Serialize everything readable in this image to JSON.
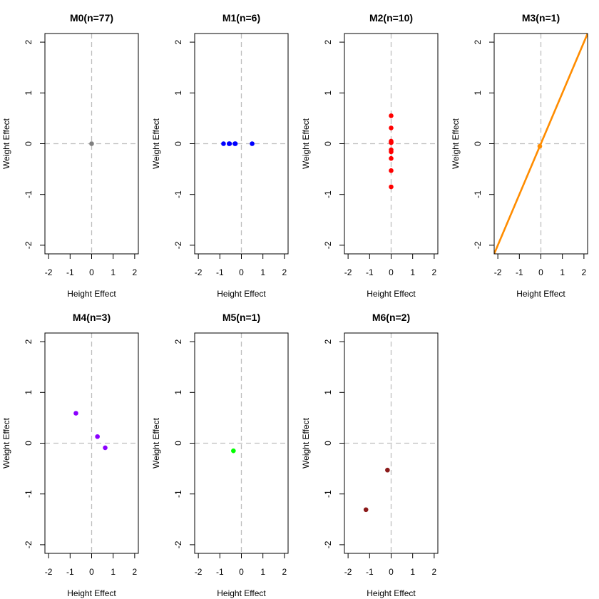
{
  "figure": {
    "xlabel": "Height Effect",
    "ylabel": "Weight Effect",
    "xticks": [
      "-2",
      "-1",
      "0",
      "1",
      "2"
    ],
    "yticks": [
      "-2",
      "-1",
      "0",
      "1",
      "2"
    ]
  },
  "chart_data": [
    {
      "type": "scatter",
      "title": "M0(n=77)",
      "color": "#808080",
      "xlabel": "Height Effect",
      "ylabel": "Weight Effect",
      "xlim": [
        -2.17,
        2.17
      ],
      "ylim": [
        -2.17,
        2.17
      ],
      "points": [
        [
          0,
          0
        ]
      ]
    },
    {
      "type": "scatter",
      "title": "M1(n=6)",
      "color": "#0000ff",
      "xlabel": "Height Effect",
      "ylabel": "Weight Effect",
      "xlim": [
        -2.17,
        2.17
      ],
      "ylim": [
        -2.17,
        2.17
      ],
      "points": [
        [
          -0.83,
          0
        ],
        [
          -0.57,
          0
        ],
        [
          -0.3,
          0
        ],
        [
          -0.28,
          0
        ],
        [
          0.5,
          0
        ],
        [
          -0.55,
          0
        ]
      ]
    },
    {
      "type": "scatter",
      "title": "M2(n=10)",
      "color": "#ff0000",
      "xlabel": "Height Effect",
      "ylabel": "Weight Effect",
      "xlim": [
        -2.17,
        2.17
      ],
      "ylim": [
        -2.17,
        2.17
      ],
      "points": [
        [
          0,
          0.55
        ],
        [
          0,
          0.31
        ],
        [
          0,
          0.05
        ],
        [
          0,
          0.02
        ],
        [
          0,
          -0.12
        ],
        [
          0,
          -0.16
        ],
        [
          0,
          -0.29
        ],
        [
          0,
          -0.53
        ],
        [
          0,
          -0.85
        ],
        [
          0,
          0.03
        ]
      ]
    },
    {
      "type": "line",
      "title": "M3(n=1)",
      "color": "#ff8c00",
      "xlabel": "Height Effect",
      "ylabel": "Weight Effect",
      "xlim": [
        -2.17,
        2.17
      ],
      "ylim": [
        -2.17,
        2.17
      ],
      "points": [
        [
          -0.05,
          -0.05
        ]
      ],
      "line": {
        "slope": 1,
        "intercept": 0
      }
    },
    {
      "type": "scatter",
      "title": "M4(n=3)",
      "color": "#8b00ff",
      "xlabel": "Height Effect",
      "ylabel": "Weight Effect",
      "xlim": [
        -2.17,
        2.17
      ],
      "ylim": [
        -2.17,
        2.17
      ],
      "points": [
        [
          -0.73,
          0.59
        ],
        [
          0.27,
          0.13
        ],
        [
          0.63,
          -0.09
        ]
      ]
    },
    {
      "type": "scatter",
      "title": "M5(n=1)",
      "color": "#00ff00",
      "xlabel": "Height Effect",
      "ylabel": "Weight Effect",
      "xlim": [
        -2.17,
        2.17
      ],
      "ylim": [
        -2.17,
        2.17
      ],
      "points": [
        [
          -0.37,
          -0.15
        ]
      ]
    },
    {
      "type": "scatter",
      "title": "M6(n=2)",
      "color": "#8b1a1a",
      "xlabel": "Height Effect",
      "ylabel": "Weight Effect",
      "xlim": [
        -2.17,
        2.17
      ],
      "ylim": [
        -2.17,
        2.17
      ],
      "points": [
        [
          -0.17,
          -0.53
        ],
        [
          -1.17,
          -1.31
        ]
      ]
    }
  ]
}
